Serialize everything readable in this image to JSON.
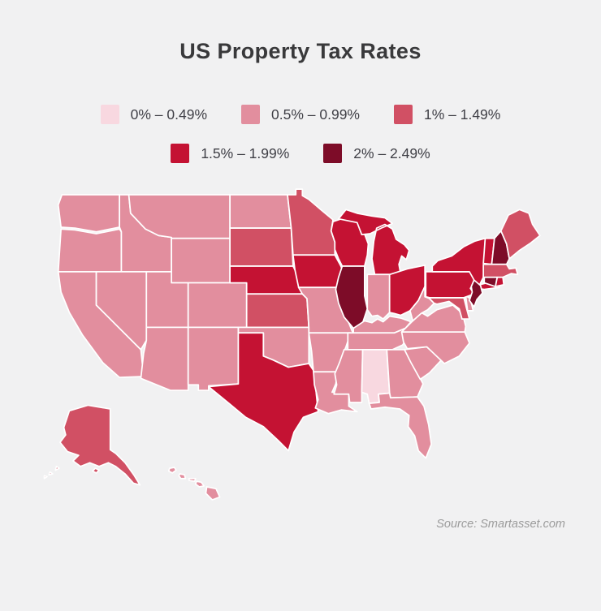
{
  "page": {
    "background": "#f1f1f2"
  },
  "header": {
    "title": "US Property Tax Rates"
  },
  "footer": {
    "source": "Source: Smartasset.com"
  },
  "chart_data": {
    "type": "heatmap",
    "subtype": "us-choropleth-map",
    "title": "US Property Tax Rates",
    "legend_position": "top",
    "source": "Source: Smartasset.com",
    "buckets": [
      {
        "range": "0-0.49",
        "label": "0% – 0.49%",
        "color": "#f8d8e0"
      },
      {
        "range": "0.5-0.99",
        "label": "0.5% – 0.99%",
        "color": "#e28e9e"
      },
      {
        "range": "1-1.49",
        "label": "1% – 1.49%",
        "color": "#d15064"
      },
      {
        "range": "1.5-1.99",
        "label": "1.5% – 1.99%",
        "color": "#c41233"
      },
      {
        "range": "2-2.49",
        "label": "2% – 2.49%",
        "color": "#7d0c28"
      }
    ],
    "legend_rows": [
      [
        0,
        1,
        2
      ],
      [
        3,
        4
      ]
    ],
    "states": {
      "WA": "0.5-0.99",
      "OR": "0.5-0.99",
      "CA": "0.5-0.99",
      "NV": "0.5-0.99",
      "ID": "0.5-0.99",
      "MT": "0.5-0.99",
      "WY": "0.5-0.99",
      "UT": "0.5-0.99",
      "CO": "0.5-0.99",
      "AZ": "0.5-0.99",
      "NM": "0.5-0.99",
      "ND": "0.5-0.99",
      "OK": "0.5-0.99",
      "MO": "0.5-0.99",
      "AR": "0.5-0.99",
      "LA": "0.5-0.99",
      "MS": "0.5-0.99",
      "TN": "0.5-0.99",
      "KY": "0.5-0.99",
      "IN": "0.5-0.99",
      "WV": "0.5-0.99",
      "VA": "0.5-0.99",
      "NC": "0.5-0.99",
      "SC": "0.5-0.99",
      "GA": "0.5-0.99",
      "FL": "0.5-0.99",
      "DE": "0.5-0.99",
      "HI": "0.5-0.99",
      "AL": "0-0.49",
      "SD": "1-1.49",
      "MN": "1-1.49",
      "KS": "1-1.49",
      "AK": "1-1.49",
      "ME": "1-1.49",
      "MA": "1-1.49",
      "MD": "1-1.49",
      "NE": "1.5-1.99",
      "IA": "1.5-1.99",
      "WI": "1.5-1.99",
      "MI": "1.5-1.99",
      "OH": "1.5-1.99",
      "TX": "1.5-1.99",
      "PA": "1.5-1.99",
      "NY": "1.5-1.99",
      "VT": "1.5-1.99",
      "RI": "1.5-1.99",
      "IL": "2-2.49",
      "NH": "2-2.49",
      "CT": "2-2.49",
      "NJ": "2-2.49"
    },
    "colors": {
      "background": "#f1f1f2",
      "state_border": "#ffffff",
      "title_text": "#39393b",
      "legend_text": "#3f3f46",
      "source_text": "#9b9b9b"
    }
  }
}
